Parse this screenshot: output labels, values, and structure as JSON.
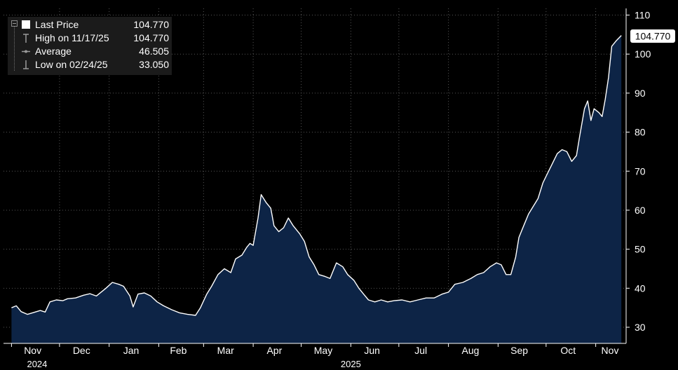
{
  "legend": {
    "items": [
      {
        "label": "Last Price",
        "value": "104.770",
        "icon": "white-square-swatch"
      },
      {
        "label": "High on 11/17/25",
        "value": "104.770",
        "icon": "high-marker-icon"
      },
      {
        "label": "Average",
        "value": "46.505",
        "icon": "average-line-icon"
      },
      {
        "label": "Low on 02/24/25",
        "value": "33.050",
        "icon": "low-marker-icon"
      }
    ]
  },
  "last_price_tag": "104.770",
  "colors": {
    "background": "#000000",
    "line": "#ffffff",
    "area_fill": "#0d2446",
    "grid": "#555555",
    "legend_bg": "#1b1b1b"
  },
  "chart_data": {
    "type": "area",
    "title": "",
    "xlabel": "",
    "ylabel": "",
    "ylim": [
      25,
      112
    ],
    "yticks": [
      30,
      40,
      50,
      60,
      70,
      80,
      90,
      100,
      110
    ],
    "grid": true,
    "legend_position": "top-left",
    "y_axis_side": "right",
    "x_ticks": [
      {
        "label": "Nov",
        "date": "2024-11-01"
      },
      {
        "label": "Dec",
        "date": "2024-12-01"
      },
      {
        "label": "Jan",
        "date": "2025-01-01"
      },
      {
        "label": "Feb",
        "date": "2025-02-01"
      },
      {
        "label": "Mar",
        "date": "2025-03-01"
      },
      {
        "label": "Apr",
        "date": "2025-04-01"
      },
      {
        "label": "May",
        "date": "2025-05-01"
      },
      {
        "label": "Jun",
        "date": "2025-06-01"
      },
      {
        "label": "Jul",
        "date": "2025-07-01"
      },
      {
        "label": "Aug",
        "date": "2025-08-01"
      },
      {
        "label": "Sep",
        "date": "2025-09-01"
      },
      {
        "label": "Oct",
        "date": "2025-10-01"
      },
      {
        "label": "Nov",
        "date": "2025-11-01"
      }
    ],
    "year_labels": [
      {
        "label": "2024",
        "date": "2024-11-17"
      },
      {
        "label": "2025",
        "date": "2025-06-01"
      }
    ],
    "series": [
      {
        "name": "Last Price",
        "points": [
          [
            "2024-11-01",
            35.0
          ],
          [
            "2024-11-04",
            35.5
          ],
          [
            "2024-11-07",
            34.0
          ],
          [
            "2024-11-11",
            33.3
          ],
          [
            "2024-11-15",
            33.8
          ],
          [
            "2024-11-19",
            34.3
          ],
          [
            "2024-11-22",
            33.9
          ],
          [
            "2024-11-25",
            36.5
          ],
          [
            "2024-11-29",
            37.0
          ],
          [
            "2024-12-03",
            36.8
          ],
          [
            "2024-12-06",
            37.3
          ],
          [
            "2024-12-11",
            37.5
          ],
          [
            "2024-12-16",
            38.2
          ],
          [
            "2024-12-20",
            38.6
          ],
          [
            "2024-12-24",
            38.0
          ],
          [
            "2024-12-30",
            40.0
          ],
          [
            "2025-01-03",
            41.5
          ],
          [
            "2025-01-07",
            41.0
          ],
          [
            "2025-01-10",
            40.5
          ],
          [
            "2025-01-14",
            38.0
          ],
          [
            "2025-01-16",
            35.2
          ],
          [
            "2025-01-19",
            38.5
          ],
          [
            "2025-01-23",
            38.8
          ],
          [
            "2025-01-27",
            38.0
          ],
          [
            "2025-01-31",
            36.5
          ],
          [
            "2025-02-04",
            35.5
          ],
          [
            "2025-02-09",
            34.5
          ],
          [
            "2025-02-14",
            33.7
          ],
          [
            "2025-02-19",
            33.3
          ],
          [
            "2025-02-24",
            33.05
          ],
          [
            "2025-02-27",
            35.0
          ],
          [
            "2025-03-03",
            38.5
          ],
          [
            "2025-03-06",
            40.5
          ],
          [
            "2025-03-10",
            43.5
          ],
          [
            "2025-03-14",
            45.0
          ],
          [
            "2025-03-18",
            44.0
          ],
          [
            "2025-03-21",
            47.5
          ],
          [
            "2025-03-25",
            48.5
          ],
          [
            "2025-03-28",
            50.5
          ],
          [
            "2025-03-30",
            51.5
          ],
          [
            "2025-04-01",
            51.0
          ],
          [
            "2025-04-04",
            58.0
          ],
          [
            "2025-04-06",
            64.0
          ],
          [
            "2025-04-09",
            62.0
          ],
          [
            "2025-04-12",
            60.5
          ],
          [
            "2025-04-14",
            56.0
          ],
          [
            "2025-04-17",
            54.5
          ],
          [
            "2025-04-20",
            55.5
          ],
          [
            "2025-04-23",
            58.0
          ],
          [
            "2025-04-26",
            56.0
          ],
          [
            "2025-04-30",
            54.0
          ],
          [
            "2025-05-03",
            52.0
          ],
          [
            "2025-05-06",
            48.0
          ],
          [
            "2025-05-09",
            46.0
          ],
          [
            "2025-05-12",
            43.5
          ],
          [
            "2025-05-16",
            43.0
          ],
          [
            "2025-05-19",
            42.5
          ],
          [
            "2025-05-23",
            46.5
          ],
          [
            "2025-05-27",
            45.5
          ],
          [
            "2025-05-30",
            43.5
          ],
          [
            "2025-06-03",
            42.0
          ],
          [
            "2025-06-06",
            40.0
          ],
          [
            "2025-06-09",
            38.5
          ],
          [
            "2025-06-12",
            37.0
          ],
          [
            "2025-06-16",
            36.5
          ],
          [
            "2025-06-20",
            37.0
          ],
          [
            "2025-06-24",
            36.5
          ],
          [
            "2025-06-28",
            36.8
          ],
          [
            "2025-07-03",
            37.0
          ],
          [
            "2025-07-08",
            36.5
          ],
          [
            "2025-07-13",
            37.0
          ],
          [
            "2025-07-18",
            37.5
          ],
          [
            "2025-07-23",
            37.5
          ],
          [
            "2025-07-28",
            38.5
          ],
          [
            "2025-08-01",
            39.0
          ],
          [
            "2025-08-05",
            41.0
          ],
          [
            "2025-08-10",
            41.5
          ],
          [
            "2025-08-15",
            42.5
          ],
          [
            "2025-08-19",
            43.5
          ],
          [
            "2025-08-23",
            44.0
          ],
          [
            "2025-08-27",
            45.5
          ],
          [
            "2025-08-31",
            46.5
          ],
          [
            "2025-09-03",
            46.0
          ],
          [
            "2025-09-06",
            43.5
          ],
          [
            "2025-09-09",
            43.5
          ],
          [
            "2025-09-12",
            48.0
          ],
          [
            "2025-09-14",
            53.0
          ],
          [
            "2025-09-17",
            56.0
          ],
          [
            "2025-09-20",
            59.0
          ],
          [
            "2025-09-23",
            61.0
          ],
          [
            "2025-09-26",
            63.0
          ],
          [
            "2025-09-29",
            67.0
          ],
          [
            "2025-10-02",
            69.5
          ],
          [
            "2025-10-05",
            72.0
          ],
          [
            "2025-10-08",
            74.5
          ],
          [
            "2025-10-11",
            75.5
          ],
          [
            "2025-10-14",
            75.0
          ],
          [
            "2025-10-17",
            72.5
          ],
          [
            "2025-10-20",
            74.0
          ],
          [
            "2025-10-22",
            79.0
          ],
          [
            "2025-10-25",
            86.0
          ],
          [
            "2025-10-27",
            88.0
          ],
          [
            "2025-10-29",
            83.0
          ],
          [
            "2025-10-31",
            86.0
          ],
          [
            "2025-11-03",
            85.0
          ],
          [
            "2025-11-05",
            84.0
          ],
          [
            "2025-11-07",
            88.5
          ],
          [
            "2025-11-09",
            94.0
          ],
          [
            "2025-11-11",
            102.0
          ],
          [
            "2025-11-14",
            103.5
          ],
          [
            "2025-11-17",
            104.77
          ]
        ]
      }
    ],
    "last_value": 104.77,
    "high": {
      "date": "2025-11-17",
      "value": 104.77
    },
    "average": 46.505,
    "low": {
      "date": "2025-02-24",
      "value": 33.05
    }
  }
}
